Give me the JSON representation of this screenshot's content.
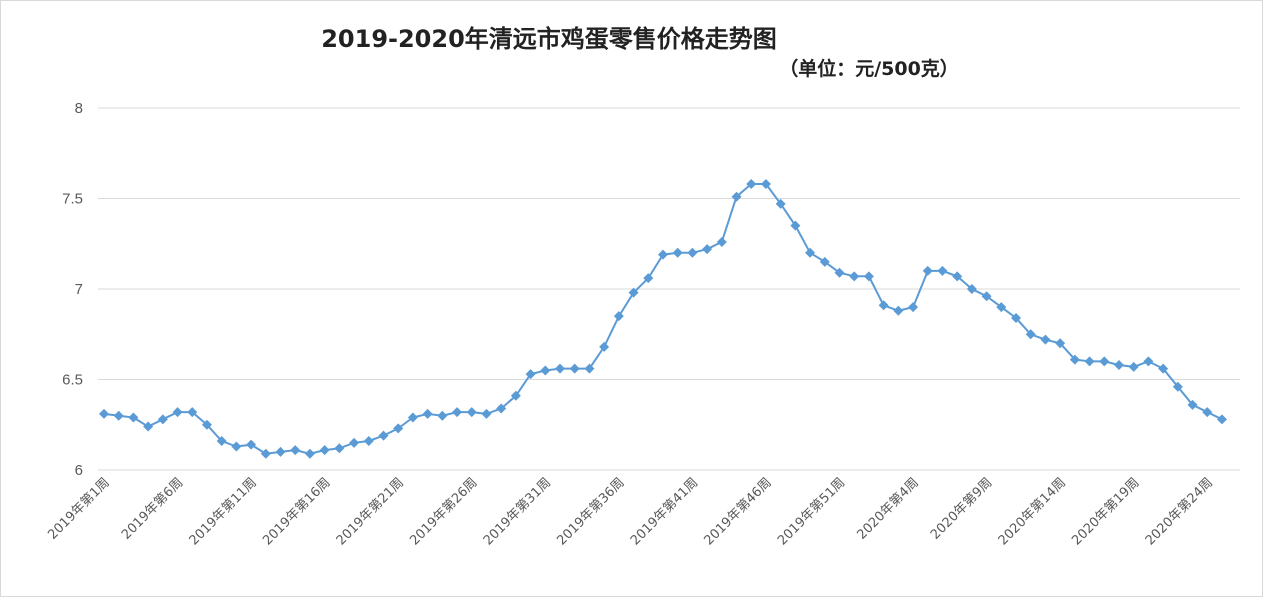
{
  "chart_data": {
    "type": "line",
    "title": "2019-2020年清远市鸡蛋零售价格走势图",
    "unit": "（单位：元/500克）",
    "xlabel": "",
    "ylabel": "",
    "ylim": [
      6,
      8
    ],
    "yticks": [
      "6",
      "6.5",
      "7",
      "7.5",
      "8"
    ],
    "grid": true,
    "marker": "diamond",
    "colors": {
      "line": "#5B9BD5",
      "grid": "#d9d9d9",
      "text": "#595959"
    },
    "tick_labels": [
      "2019年第1周",
      "2019年第6周",
      "2019年第11周",
      "2019年第16周",
      "2019年第21周",
      "2019年第26周",
      "2019年第31周",
      "2019年第36周",
      "2019年第41周",
      "2019年第46周",
      "2019年第51周",
      "2020年第4周",
      "2020年第9周",
      "2020年第14周",
      "2020年第19周",
      "2020年第24周"
    ],
    "tick_every": 5,
    "values": [
      6.31,
      6.3,
      6.29,
      6.24,
      6.28,
      6.32,
      6.32,
      6.25,
      6.16,
      6.13,
      6.14,
      6.09,
      6.1,
      6.11,
      6.09,
      6.11,
      6.12,
      6.15,
      6.16,
      6.19,
      6.23,
      6.29,
      6.31,
      6.3,
      6.32,
      6.32,
      6.31,
      6.34,
      6.41,
      6.53,
      6.55,
      6.56,
      6.56,
      6.56,
      6.68,
      6.85,
      6.98,
      7.06,
      7.19,
      7.2,
      7.2,
      7.22,
      7.26,
      7.51,
      7.58,
      7.58,
      7.47,
      7.35,
      7.2,
      7.15,
      7.09,
      7.07,
      7.07,
      6.91,
      6.88,
      6.9,
      7.1,
      7.1,
      7.07,
      7.0,
      6.96,
      6.9,
      6.84,
      6.75,
      6.72,
      6.7,
      6.61,
      6.6,
      6.6,
      6.58,
      6.57,
      6.6,
      6.56,
      6.46,
      6.36,
      6.32,
      6.28
    ]
  }
}
